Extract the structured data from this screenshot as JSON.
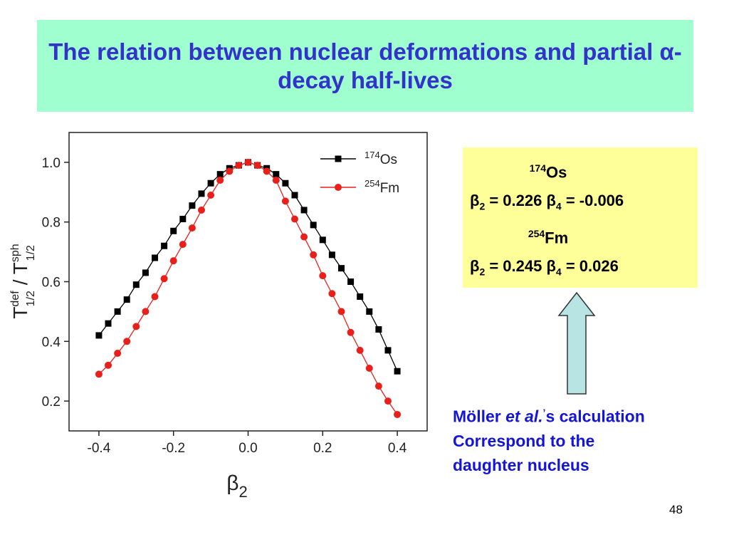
{
  "title": "The relation between nuclear deformations and partial α-decay half-lives",
  "chart_data": {
    "type": "line",
    "x_label": [
      "β",
      "2"
    ],
    "y_label": [
      "T",
      "def",
      "1/2",
      " / T",
      "sph",
      "1/2"
    ],
    "x": [
      -0.4,
      -0.375,
      -0.35,
      -0.325,
      -0.3,
      -0.275,
      -0.25,
      -0.225,
      -0.2,
      -0.175,
      -0.15,
      -0.125,
      -0.1,
      -0.075,
      -0.05,
      -0.025,
      0,
      0.025,
      0.05,
      0.075,
      0.1,
      0.125,
      0.15,
      0.175,
      0.2,
      0.225,
      0.25,
      0.275,
      0.3,
      0.325,
      0.35,
      0.375,
      0.4
    ],
    "series": [
      {
        "name": "174Os",
        "color": "#000000",
        "marker": "square",
        "values": [
          0.42,
          0.46,
          0.5,
          0.54,
          0.59,
          0.63,
          0.68,
          0.72,
          0.77,
          0.81,
          0.855,
          0.895,
          0.93,
          0.96,
          0.98,
          0.99,
          1.0,
          0.99,
          0.98,
          0.96,
          0.93,
          0.89,
          0.84,
          0.79,
          0.74,
          0.69,
          0.645,
          0.6,
          0.55,
          0.5,
          0.44,
          0.37,
          0.3
        ]
      },
      {
        "name": "254Fm",
        "color": "#e8201c",
        "marker": "circle",
        "values": [
          0.29,
          0.32,
          0.36,
          0.4,
          0.45,
          0.5,
          0.55,
          0.61,
          0.67,
          0.725,
          0.78,
          0.84,
          0.89,
          0.94,
          0.97,
          0.99,
          1.0,
          0.99,
          0.97,
          0.94,
          0.87,
          0.81,
          0.75,
          0.69,
          0.62,
          0.56,
          0.5,
          0.43,
          0.37,
          0.31,
          0.25,
          0.2,
          0.155
        ]
      }
    ],
    "xlim": [
      -0.48,
      0.48
    ],
    "ylim": [
      0.1,
      1.1
    ],
    "xticks": [
      -0.4,
      -0.2,
      {
        "value": 0,
        "label": "0.0"
      },
      0.2,
      0.4
    ],
    "yticks": [
      0.2,
      0.4,
      0.6,
      0.8,
      {
        "value": 1,
        "label": "1.0"
      }
    ],
    "grid": false,
    "legend": "upper right"
  },
  "info_box": {
    "lines": [
      [
        "174",
        "Os"
      ],
      [
        "β",
        "2",
        " = 0.226 β",
        "4",
        " = -0.006"
      ],
      [
        "254",
        "Fm"
      ],
      [
        "β",
        "2",
        " = 0.245 β",
        "4",
        " = 0.026"
      ]
    ]
  },
  "note": {
    "lines": [
      [
        "Möller ",
        "et al.",
        "’",
        "s calculation"
      ],
      [
        "Correspond to the"
      ],
      [
        "daughter nucleus"
      ]
    ]
  },
  "page_number": "48"
}
